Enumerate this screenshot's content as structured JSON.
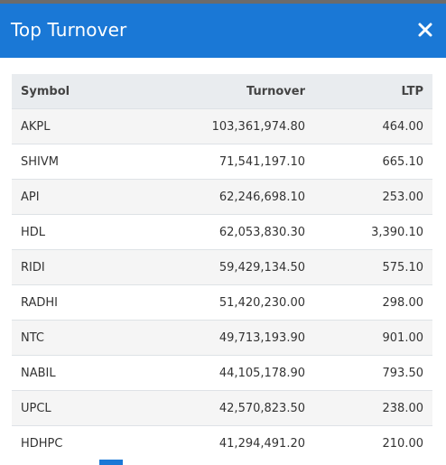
{
  "modal": {
    "title": "Top Turnover",
    "colors": {
      "header": "#1a78d6",
      "header_text": "#ffffff",
      "stripe": "#f5f5f5"
    }
  },
  "table": {
    "headers": {
      "symbol": "Symbol",
      "turnover": "Turnover",
      "ltp": "LTP"
    },
    "rows": [
      {
        "symbol": "AKPL",
        "turnover": "103,361,974.80",
        "ltp": "464.00"
      },
      {
        "symbol": "SHIVM",
        "turnover": "71,541,197.10",
        "ltp": "665.10"
      },
      {
        "symbol": "API",
        "turnover": "62,246,698.10",
        "ltp": "253.00"
      },
      {
        "symbol": "HDL",
        "turnover": "62,053,830.30",
        "ltp": "3,390.10"
      },
      {
        "symbol": "RIDI",
        "turnover": "59,429,134.50",
        "ltp": "575.10"
      },
      {
        "symbol": "RADHI",
        "turnover": "51,420,230.00",
        "ltp": "298.00"
      },
      {
        "symbol": "NTC",
        "turnover": "49,713,193.90",
        "ltp": "901.00"
      },
      {
        "symbol": "NABIL",
        "turnover": "44,105,178.90",
        "ltp": "793.50"
      },
      {
        "symbol": "UPCL",
        "turnover": "42,570,823.50",
        "ltp": "238.00"
      },
      {
        "symbol": "HDHPC",
        "turnover": "41,294,491.20",
        "ltp": "210.00"
      }
    ]
  },
  "icons": {
    "close": "close-icon"
  }
}
